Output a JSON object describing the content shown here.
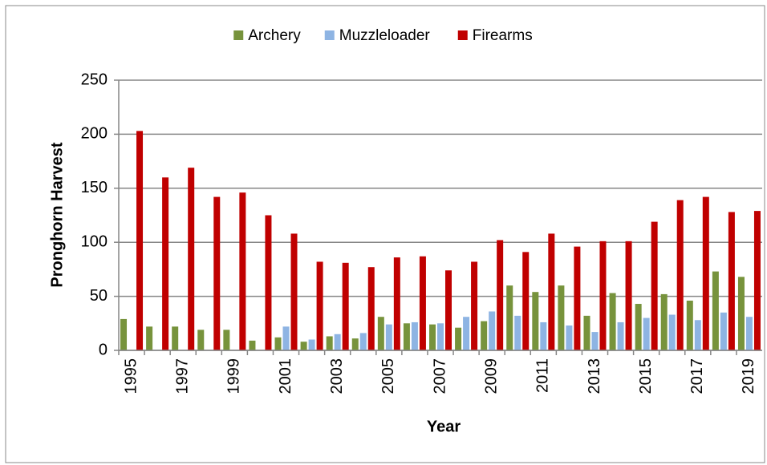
{
  "chart_data": {
    "type": "bar",
    "x_label": "Year",
    "y_label": "Pronghorn Harvest",
    "categories": [
      "1995",
      null,
      "1997",
      null,
      "1999",
      null,
      "2001",
      null,
      "2003",
      null,
      "2005",
      null,
      "2007",
      null,
      "2009",
      null,
      "2011",
      null,
      "2013",
      null,
      "2015",
      null,
      "2017",
      null,
      "2019"
    ],
    "series": [
      {
        "name": "Archery",
        "color": "#77933c",
        "values": [
          29,
          22,
          22,
          19,
          19,
          9,
          12,
          8,
          13,
          11,
          31,
          25,
          24,
          21,
          27,
          60,
          54,
          60,
          32,
          53,
          43,
          52,
          46,
          73,
          68
        ]
      },
      {
        "name": "Muzzleloader",
        "color": "#8eb4e3",
        "values": [
          null,
          null,
          null,
          null,
          null,
          null,
          22,
          10,
          15,
          16,
          24,
          26,
          25,
          31,
          36,
          32,
          26,
          23,
          17,
          26,
          30,
          33,
          28,
          35,
          31
        ]
      },
      {
        "name": "Firearms",
        "color": "#c00000",
        "values": [
          203,
          160,
          169,
          142,
          146,
          125,
          108,
          82,
          81,
          77,
          86,
          87,
          74,
          82,
          102,
          91,
          108,
          96,
          101,
          101,
          119,
          139,
          142,
          128,
          129
        ]
      }
    ],
    "ylim": [
      0,
      250
    ],
    "yticks": [
      0,
      50,
      100,
      150,
      200,
      250
    ],
    "grid": true,
    "legend": "top"
  }
}
